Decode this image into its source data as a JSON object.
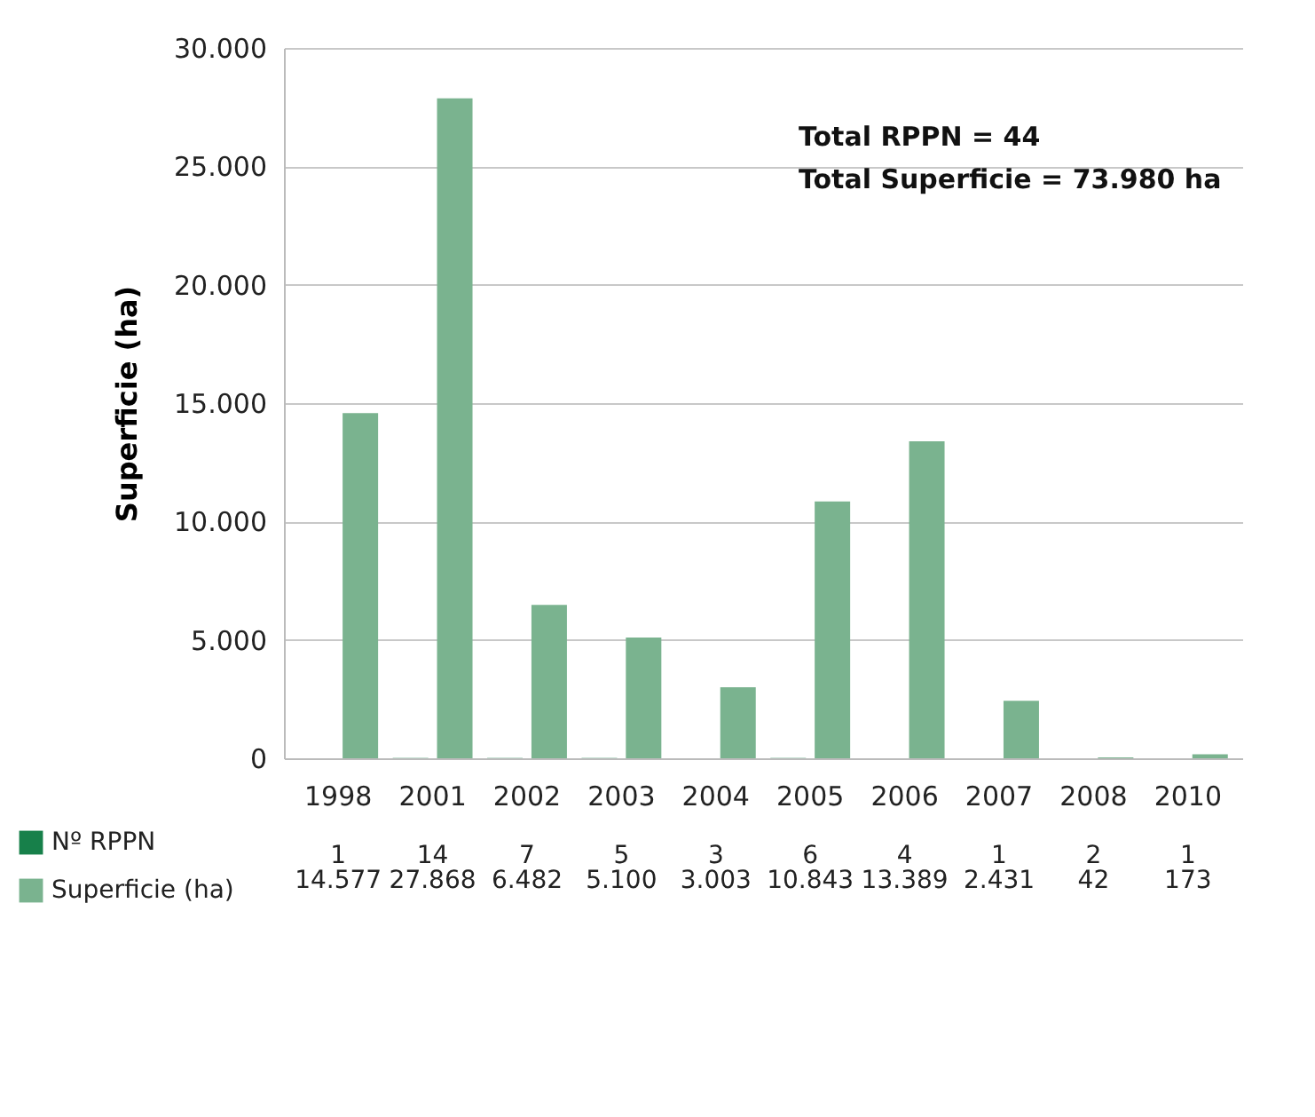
{
  "chart_data": {
    "type": "bar",
    "ylabel": "Superficie (ha)",
    "categories": [
      "1998",
      "2001",
      "2002",
      "2003",
      "2004",
      "2005",
      "2006",
      "2007",
      "2008",
      "2010"
    ],
    "series": [
      {
        "name": "Nº RPPN",
        "color": "#17804a",
        "values": [
          1,
          14,
          7,
          5,
          3,
          6,
          4,
          1,
          2,
          1
        ],
        "value_labels": [
          "1",
          "14",
          "7",
          "5",
          "3",
          "6",
          "4",
          "1",
          "2",
          "1"
        ]
      },
      {
        "name": "Superficie (ha)",
        "color": "#7ab38f",
        "values": [
          14577,
          27868,
          6482,
          5100,
          3003,
          10843,
          13389,
          2431,
          42,
          173
        ],
        "value_labels": [
          "14.577",
          "27.868",
          "6.482",
          "5.100",
          "3.003",
          "10.843",
          "13.389",
          "2.431",
          "42",
          "173"
        ]
      }
    ],
    "ylim": [
      0,
      30000
    ],
    "yticks": [
      0,
      {
        "value": 5000,
        "label": "5.000"
      },
      {
        "value": 10000,
        "label": "10.000"
      },
      {
        "value": 15000,
        "label": "15.000"
      },
      {
        "value": 20000,
        "label": "20.000"
      },
      {
        "value": 25000,
        "label": "25.000"
      },
      {
        "value": 30000,
        "label": "30.000"
      }
    ],
    "grid": "y",
    "legend": "bottom left",
    "annotations": [
      "Total RPPN = 44",
      "Total Superficie = 73.980 ha"
    ]
  }
}
